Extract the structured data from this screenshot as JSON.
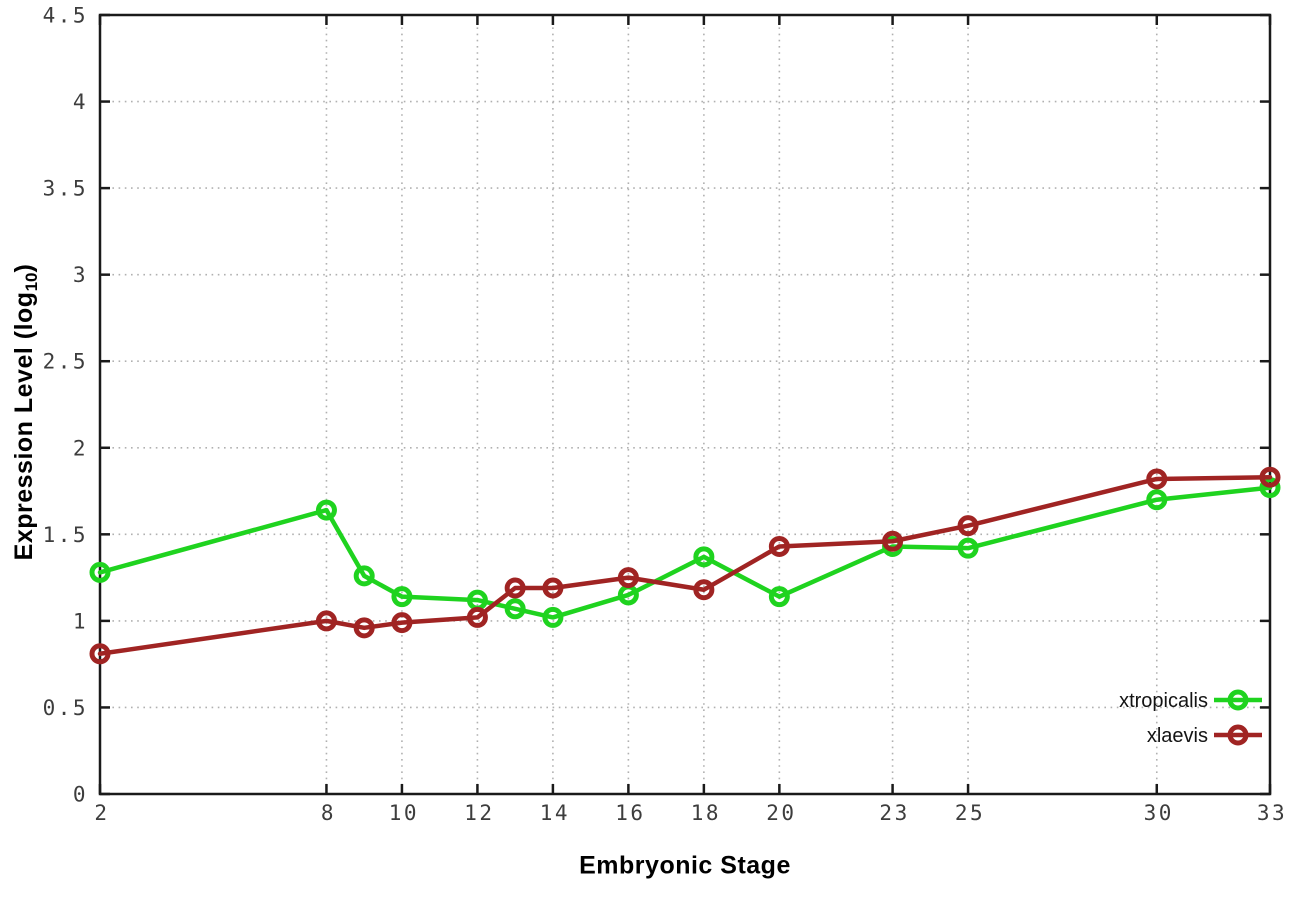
{
  "figure": {
    "background": "#ffffff",
    "border_color": "#1a1a1a",
    "grid_color": "#b0b0b0",
    "tick_label_color": "#3d3d3d",
    "legend_text_color": "#141414"
  },
  "chart_data": {
    "type": "line",
    "title": "",
    "xlabel": "Embryonic Stage",
    "ylabel": "Expression Level (log10)",
    "ylabel_parts": {
      "main": "Expression Level (log",
      "sub": "10",
      "suffix": ")"
    },
    "xlim": [
      2,
      33
    ],
    "ylim": [
      0,
      4.5
    ],
    "grid": true,
    "legend_position": "bottom-right",
    "x_tick_values": [
      2,
      8,
      10,
      12,
      14,
      16,
      18,
      20,
      23,
      25,
      30,
      33
    ],
    "x_tick_labels": [
      "2",
      "8",
      "10",
      "12",
      "14",
      "16",
      "18",
      "20",
      "23",
      "25",
      "30",
      "33"
    ],
    "y_tick_values": [
      0,
      0.5,
      1,
      1.5,
      2,
      2.5,
      3,
      3.5,
      4,
      4.5
    ],
    "y_tick_labels": [
      "0",
      "0.5",
      "1",
      "1.5",
      "2",
      "2.5",
      "3",
      "3.5",
      "4",
      "4.5"
    ],
    "x": [
      2,
      8,
      9,
      10,
      12,
      13,
      14,
      16,
      18,
      20,
      23,
      25,
      30,
      33
    ],
    "series": [
      {
        "name": "xtropicalis",
        "color": "#1fd31f",
        "values": [
          1.28,
          1.64,
          1.26,
          1.14,
          1.12,
          1.07,
          1.02,
          1.15,
          1.37,
          1.14,
          1.43,
          1.42,
          1.7,
          1.77
        ]
      },
      {
        "name": "xlaevis",
        "color": "#a02423",
        "values": [
          0.81,
          1.0,
          0.96,
          0.99,
          1.02,
          1.19,
          1.19,
          1.25,
          1.18,
          1.43,
          1.46,
          1.55,
          1.82,
          1.83
        ]
      }
    ]
  }
}
